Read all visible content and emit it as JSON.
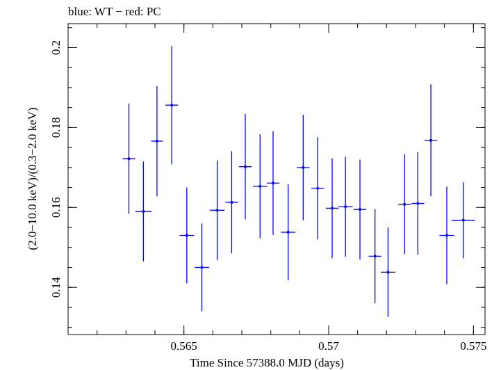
{
  "chart_data": {
    "type": "scatter",
    "title": "blue: WT − red: PC",
    "xlabel": "Time Since 57388.0 MJD (days)",
    "ylabel": "(2.0−10.0 keV)/(0.3−2.0 keV)",
    "xlim": [
      0.561,
      0.5754
    ],
    "ylim": [
      0.1282,
      0.206
    ],
    "x_ticks": [
      {
        "value": 0.565,
        "label": "0.565"
      },
      {
        "value": 0.57,
        "label": "0.57"
      },
      {
        "value": 0.575,
        "label": "0.575"
      }
    ],
    "y_ticks": [
      {
        "value": 0.14,
        "label": "0.14"
      },
      {
        "value": 0.16,
        "label": "0.16"
      },
      {
        "value": 0.18,
        "label": "0.18"
      },
      {
        "value": 0.2,
        "label": "0.2"
      }
    ],
    "x_minor_step": 0.001,
    "y_minor_step": 0.005,
    "grid": false,
    "series": [
      {
        "color": "#0000ff",
        "points": [
          {
            "x": 0.5631,
            "xerr": 0.00022,
            "y": 0.1722,
            "yerr": 0.0138
          },
          {
            "x": 0.5636,
            "xerr": 0.00028,
            "y": 0.159,
            "yerr": 0.0125
          },
          {
            "x": 0.56407,
            "xerr": 0.0002,
            "y": 0.1766,
            "yerr": 0.0138
          },
          {
            "x": 0.56458,
            "xerr": 0.00022,
            "y": 0.1856,
            "yerr": 0.0148
          },
          {
            "x": 0.5651,
            "xerr": 0.00025,
            "y": 0.153,
            "yerr": 0.012
          },
          {
            "x": 0.56562,
            "xerr": 0.00025,
            "y": 0.145,
            "yerr": 0.011
          },
          {
            "x": 0.56615,
            "xerr": 0.00025,
            "y": 0.1593,
            "yerr": 0.0125
          },
          {
            "x": 0.56665,
            "xerr": 0.00022,
            "y": 0.1613,
            "yerr": 0.0128
          },
          {
            "x": 0.56712,
            "xerr": 0.00022,
            "y": 0.1702,
            "yerr": 0.0132
          },
          {
            "x": 0.56763,
            "xerr": 0.00025,
            "y": 0.1653,
            "yerr": 0.013
          },
          {
            "x": 0.56808,
            "xerr": 0.00022,
            "y": 0.1661,
            "yerr": 0.013
          },
          {
            "x": 0.5686,
            "xerr": 0.00025,
            "y": 0.1538,
            "yerr": 0.012
          },
          {
            "x": 0.56912,
            "xerr": 0.00022,
            "y": 0.17,
            "yerr": 0.0132
          },
          {
            "x": 0.56962,
            "xerr": 0.00022,
            "y": 0.1648,
            "yerr": 0.0128
          },
          {
            "x": 0.57012,
            "xerr": 0.00022,
            "y": 0.1598,
            "yerr": 0.0125
          },
          {
            "x": 0.57058,
            "xerr": 0.00025,
            "y": 0.1602,
            "yerr": 0.0125
          },
          {
            "x": 0.57108,
            "xerr": 0.00022,
            "y": 0.1595,
            "yerr": 0.0125
          },
          {
            "x": 0.5716,
            "xerr": 0.00022,
            "y": 0.1478,
            "yerr": 0.0118
          },
          {
            "x": 0.57205,
            "xerr": 0.00025,
            "y": 0.1438,
            "yerr": 0.0112
          },
          {
            "x": 0.57262,
            "xerr": 0.00022,
            "y": 0.1608,
            "yerr": 0.0125
          },
          {
            "x": 0.57308,
            "xerr": 0.00022,
            "y": 0.161,
            "yerr": 0.0128
          },
          {
            "x": 0.57353,
            "xerr": 0.00022,
            "y": 0.1768,
            "yerr": 0.014
          },
          {
            "x": 0.57408,
            "xerr": 0.00025,
            "y": 0.153,
            "yerr": 0.0122
          },
          {
            "x": 0.57465,
            "xerr": 0.0004,
            "y": 0.1568,
            "yerr": 0.0095
          }
        ]
      }
    ]
  }
}
